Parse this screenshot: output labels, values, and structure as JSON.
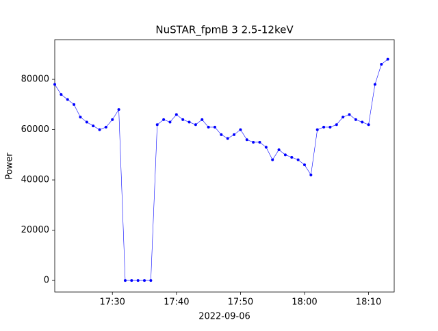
{
  "chart_data": {
    "type": "line",
    "title": "NuSTAR_fpmB 3 2.5-12keV",
    "xlabel": "2022-09-06",
    "ylabel": "Power",
    "x": [
      "2022-09-06 17:21",
      "2022-09-06 17:22",
      "2022-09-06 17:23",
      "2022-09-06 17:24",
      "2022-09-06 17:25",
      "2022-09-06 17:26",
      "2022-09-06 17:27",
      "2022-09-06 17:28",
      "2022-09-06 17:29",
      "2022-09-06 17:30",
      "2022-09-06 17:31",
      "2022-09-06 17:32",
      "2022-09-06 17:33",
      "2022-09-06 17:34",
      "2022-09-06 17:35",
      "2022-09-06 17:36",
      "2022-09-06 17:37",
      "2022-09-06 17:38",
      "2022-09-06 17:39",
      "2022-09-06 17:40",
      "2022-09-06 17:41",
      "2022-09-06 17:42",
      "2022-09-06 17:43",
      "2022-09-06 17:44",
      "2022-09-06 17:45",
      "2022-09-06 17:46",
      "2022-09-06 17:47",
      "2022-09-06 17:48",
      "2022-09-06 17:49",
      "2022-09-06 17:50",
      "2022-09-06 17:51",
      "2022-09-06 17:52",
      "2022-09-06 17:53",
      "2022-09-06 17:54",
      "2022-09-06 17:55",
      "2022-09-06 17:56",
      "2022-09-06 17:57",
      "2022-09-06 17:58",
      "2022-09-06 17:59",
      "2022-09-06 18:00",
      "2022-09-06 18:01",
      "2022-09-06 18:02",
      "2022-09-06 18:03",
      "2022-09-06 18:04",
      "2022-09-06 18:05",
      "2022-09-06 18:06",
      "2022-09-06 18:07",
      "2022-09-06 18:08",
      "2022-09-06 18:09",
      "2022-09-06 18:10",
      "2022-09-06 18:11",
      "2022-09-06 18:12",
      "2022-09-06 18:13"
    ],
    "series": [
      {
        "name": "Power",
        "color": "#0000ff",
        "values": [
          78000,
          74000,
          72000,
          70000,
          65000,
          63000,
          61500,
          60000,
          61000,
          64000,
          68000,
          0,
          0,
          0,
          0,
          0,
          62000,
          64000,
          63000,
          66000,
          64000,
          63000,
          62000,
          64000,
          61000,
          61000,
          58000,
          56500,
          58000,
          60000,
          56000,
          55000,
          55000,
          53000,
          48000,
          52000,
          50000,
          49000,
          48000,
          46000,
          42000,
          60000,
          61000,
          61000,
          62000,
          65000,
          66000,
          64000,
          63000,
          62000,
          78000,
          86000,
          88000
        ]
      }
    ],
    "xlim": [
      "2022-09-06 17:21",
      "2022-09-06 18:14"
    ],
    "xticks": [
      {
        "value": "2022-09-06 17:30",
        "label": "17:30"
      },
      {
        "value": "2022-09-06 17:40",
        "label": "17:40"
      },
      {
        "value": "2022-09-06 17:50",
        "label": "17:50"
      },
      {
        "value": "2022-09-06 18:00",
        "label": "18:00"
      },
      {
        "value": "2022-09-06 18:10",
        "label": "18:10"
      }
    ],
    "ylim": [
      -4600,
      95800
    ],
    "yticks": [
      0,
      20000,
      40000,
      60000,
      80000
    ],
    "grid": false
  }
}
